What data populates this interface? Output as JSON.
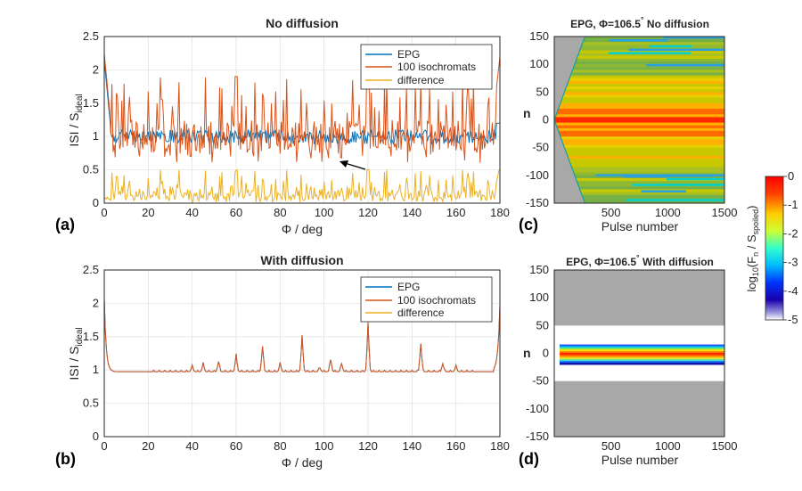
{
  "chart_data": [
    {
      "panel": "(a)",
      "type": "line",
      "title": "No diffusion",
      "xlabel": "Φ / deg",
      "ylabel": "ISI / S",
      "ylabel_sub": "ideal",
      "xlim": [
        0,
        180
      ],
      "ylim": [
        0,
        2.5
      ],
      "xticks": [
        0,
        20,
        40,
        60,
        80,
        100,
        120,
        140,
        160,
        180
      ],
      "yticks": [
        0,
        0.5,
        1,
        1.5,
        2,
        2.5
      ],
      "ytick_labels": [
        "0",
        "0.5",
        "1",
        "1.5",
        "2",
        "2.5"
      ],
      "grid": true,
      "legend": "top-right",
      "annotation": "arrow pointing at EPG curve near Φ≈106.5°",
      "series": [
        {
          "name": "EPG",
          "color": "#0072bd",
          "mode": "epg_nodiff"
        },
        {
          "name": "100 isochromats",
          "color": "#d95319",
          "mode": "iso_nodiff"
        },
        {
          "name": "difference",
          "color": "#edb120",
          "mode": "diff_nodiff"
        }
      ]
    },
    {
      "panel": "(b)",
      "type": "line",
      "title": "With diffusion",
      "xlabel": "Φ / deg",
      "ylabel": "ISI / S",
      "ylabel_sub": "ideal",
      "xlim": [
        0,
        180
      ],
      "ylim": [
        0,
        2.5
      ],
      "xticks": [
        0,
        20,
        40,
        60,
        80,
        100,
        120,
        140,
        160,
        180
      ],
      "yticks": [
        0,
        0.5,
        1,
        1.5,
        2,
        2.5
      ],
      "ytick_labels": [
        "0",
        "0.5",
        "1",
        "1.5",
        "2",
        "2.5"
      ],
      "grid": true,
      "legend": "top-right",
      "series": [
        {
          "name": "EPG",
          "color": "#0072bd",
          "mode": "diff"
        },
        {
          "name": "100 isochromats",
          "color": "#d95319",
          "mode": "diff"
        },
        {
          "name": "difference",
          "color": "#edb120",
          "mode": "zero"
        }
      ]
    },
    {
      "panel": "(c)",
      "type": "heatmap",
      "title_prefix": "EPG, Φ=106.5",
      "title_suffix": " No diffusion",
      "degree": "°",
      "xlabel": "Pulse number",
      "ylabel": "n",
      "xlim": [
        0,
        1500
      ],
      "ylim": [
        -150,
        150
      ],
      "xticks": [
        500,
        1000,
        1500
      ],
      "yticks": [
        150,
        100,
        50,
        0,
        -50,
        -100,
        -150
      ]
    },
    {
      "panel": "(d)",
      "type": "heatmap",
      "title_prefix": "EPG, Φ=106.5",
      "title_suffix": " With diffusion",
      "degree": "°",
      "xlabel": "Pulse number",
      "ylabel": "n",
      "xlim": [
        0,
        1500
      ],
      "ylim": [
        -150,
        150
      ],
      "xticks": [
        500,
        1000,
        1500
      ],
      "yticks": [
        150,
        100,
        50,
        0,
        -50,
        -100,
        -150
      ]
    },
    {
      "type": "colorbar",
      "label_main": "log",
      "label_sub10": "10",
      "label_rest": "(F",
      "label_subn": "n",
      "label_mid": " / S",
      "label_subsp": "spoiled",
      "label_end": ")",
      "range": [
        -5,
        0
      ],
      "ticks": [
        0,
        -1,
        -2,
        -3,
        -4,
        -5
      ],
      "tick_labels": [
        "0",
        "-1",
        "-2",
        "-3",
        "-4",
        "-5"
      ]
    }
  ]
}
